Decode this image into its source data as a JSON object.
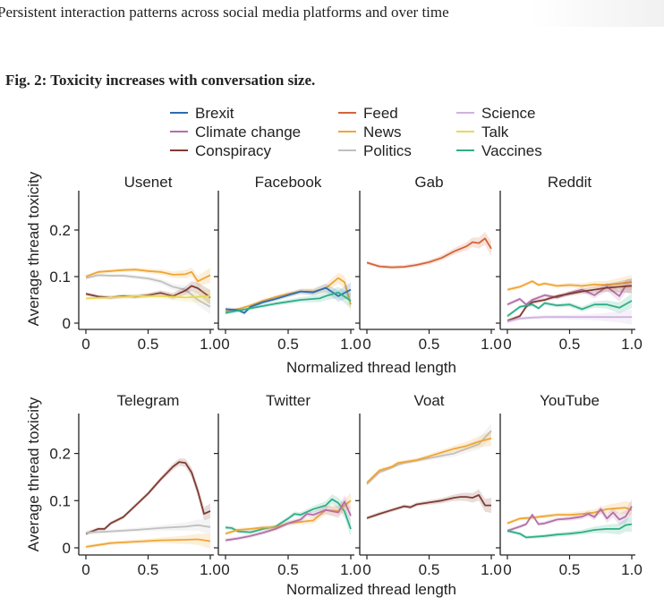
{
  "header": {
    "article_title": "Persistent interaction patterns across social media platforms and over time"
  },
  "figure": {
    "title": "Fig. 2: Toxicity increases with conversation size."
  },
  "chart_data": {
    "type": "line",
    "title": "Fig. 2: Toxicity increases with conversation size.",
    "xlabel": "Normalized thread length",
    "ylabel": "Average thread toxicity",
    "xlim": [
      0,
      1.0
    ],
    "ylim": [
      -0.01,
      0.28
    ],
    "xticks": [
      0,
      0.5,
      1.0
    ],
    "xtick_labels": [
      "0",
      "0.5",
      "1.0"
    ],
    "yticks": [
      0,
      0.1,
      0.2
    ],
    "ytick_labels": [
      "0",
      "0.1",
      "0.2"
    ],
    "grid": false,
    "legend_position": "top",
    "legend": [
      {
        "name": "Brexit",
        "color": "#2b6cb0"
      },
      {
        "name": "Climate change",
        "color": "#b36fa8"
      },
      {
        "name": "Conspiracy",
        "color": "#7e3b32"
      },
      {
        "name": "Feed",
        "color": "#d4633a"
      },
      {
        "name": "News",
        "color": "#f0a534"
      },
      {
        "name": "Politics",
        "color": "#c0c0c0"
      },
      {
        "name": "Science",
        "color": "#cfb2df"
      },
      {
        "name": "Talk",
        "color": "#e8d85a"
      },
      {
        "name": "Vaccines",
        "color": "#2fae86"
      }
    ],
    "panels": [
      {
        "name": "Usenet",
        "series": [
          {
            "name": "News",
            "x": [
              0,
              0.1,
              0.2,
              0.3,
              0.4,
              0.5,
              0.6,
              0.7,
              0.8,
              0.85,
              0.9,
              1.0
            ],
            "values": [
              0.1,
              0.11,
              0.112,
              0.114,
              0.115,
              0.112,
              0.11,
              0.104,
              0.105,
              0.11,
              0.09,
              0.103
            ]
          },
          {
            "name": "Politics",
            "x": [
              0,
              0.1,
              0.2,
              0.3,
              0.4,
              0.5,
              0.6,
              0.7,
              0.8,
              0.9,
              1.0
            ],
            "values": [
              0.097,
              0.103,
              0.102,
              0.102,
              0.099,
              0.096,
              0.09,
              0.078,
              0.072,
              0.05,
              0.035
            ]
          },
          {
            "name": "Conspiracy",
            "x": [
              0,
              0.1,
              0.2,
              0.3,
              0.4,
              0.5,
              0.6,
              0.7,
              0.8,
              0.85,
              0.9,
              1.0
            ],
            "values": [
              0.063,
              0.057,
              0.055,
              0.058,
              0.057,
              0.06,
              0.065,
              0.058,
              0.07,
              0.08,
              0.075,
              0.055
            ]
          },
          {
            "name": "Talk",
            "x": [
              0,
              0.2,
              0.4,
              0.6,
              0.8,
              1.0
            ],
            "values": [
              0.053,
              0.055,
              0.058,
              0.058,
              0.055,
              0.058
            ]
          }
        ]
      },
      {
        "name": "Facebook",
        "series": [
          {
            "name": "News",
            "x": [
              0,
              0.1,
              0.2,
              0.3,
              0.4,
              0.5,
              0.6,
              0.7,
              0.8,
              0.9,
              0.95,
              1.0
            ],
            "values": [
              0.025,
              0.03,
              0.038,
              0.048,
              0.056,
              0.063,
              0.068,
              0.068,
              0.075,
              0.097,
              0.088,
              0.04
            ]
          },
          {
            "name": "Brexit",
            "x": [
              0,
              0.1,
              0.15,
              0.2,
              0.3,
              0.4,
              0.5,
              0.6,
              0.7,
              0.8,
              0.9,
              1.0
            ],
            "values": [
              0.03,
              0.028,
              0.022,
              0.035,
              0.045,
              0.052,
              0.06,
              0.068,
              0.066,
              0.076,
              0.058,
              0.072
            ]
          },
          {
            "name": "Vaccines",
            "x": [
              0,
              0.2,
              0.4,
              0.6,
              0.75,
              0.8,
              0.9,
              1.0
            ],
            "values": [
              0.022,
              0.032,
              0.042,
              0.05,
              0.053,
              0.058,
              0.066,
              0.048
            ]
          }
        ]
      },
      {
        "name": "Gab",
        "series": [
          {
            "name": "Feed",
            "x": [
              0,
              0.1,
              0.2,
              0.3,
              0.4,
              0.5,
              0.6,
              0.7,
              0.8,
              0.85,
              0.9,
              0.95,
              1.0
            ],
            "values": [
              0.13,
              0.122,
              0.12,
              0.121,
              0.125,
              0.131,
              0.14,
              0.154,
              0.165,
              0.174,
              0.172,
              0.182,
              0.16
            ]
          }
        ]
      },
      {
        "name": "Reddit",
        "series": [
          {
            "name": "News",
            "x": [
              0,
              0.1,
              0.2,
              0.25,
              0.3,
              0.4,
              0.5,
              0.6,
              0.7,
              0.8,
              0.9,
              1.0
            ],
            "values": [
              0.072,
              0.078,
              0.09,
              0.082,
              0.085,
              0.08,
              0.082,
              0.08,
              0.083,
              0.082,
              0.085,
              0.088
            ]
          },
          {
            "name": "Climate change",
            "x": [
              0,
              0.1,
              0.15,
              0.2,
              0.3,
              0.4,
              0.5,
              0.6,
              0.7,
              0.8,
              0.9,
              0.95,
              1.0
            ],
            "values": [
              0.04,
              0.052,
              0.04,
              0.05,
              0.06,
              0.055,
              0.065,
              0.072,
              0.06,
              0.078,
              0.058,
              0.08,
              0.08
            ]
          },
          {
            "name": "Conspiracy",
            "x": [
              0,
              0.1,
              0.15,
              0.2,
              0.3,
              0.4,
              0.5,
              0.6,
              0.7,
              0.8,
              0.9,
              1.0
            ],
            "values": [
              0.005,
              0.015,
              0.035,
              0.045,
              0.05,
              0.058,
              0.063,
              0.068,
              0.072,
              0.076,
              0.078,
              0.08
            ]
          },
          {
            "name": "Vaccines",
            "x": [
              0,
              0.1,
              0.2,
              0.25,
              0.3,
              0.4,
              0.5,
              0.6,
              0.7,
              0.8,
              0.9,
              1.0
            ],
            "values": [
              0.015,
              0.035,
              0.04,
              0.032,
              0.043,
              0.038,
              0.04,
              0.03,
              0.04,
              0.04,
              0.033,
              0.048
            ]
          },
          {
            "name": "Science",
            "x": [
              0,
              0.1,
              0.2,
              0.3,
              0.5,
              0.7,
              0.9,
              1.0
            ],
            "values": [
              0.003,
              0.01,
              0.012,
              0.013,
              0.013,
              0.013,
              0.013,
              0.013
            ]
          }
        ]
      },
      {
        "name": "Telegram",
        "series": [
          {
            "name": "Conspiracy",
            "x": [
              0,
              0.1,
              0.15,
              0.2,
              0.3,
              0.4,
              0.5,
              0.6,
              0.7,
              0.75,
              0.8,
              0.85,
              0.9,
              0.95,
              1.0
            ],
            "values": [
              0.03,
              0.04,
              0.04,
              0.052,
              0.065,
              0.09,
              0.115,
              0.145,
              0.172,
              0.182,
              0.18,
              0.16,
              0.12,
              0.072,
              0.078
            ]
          },
          {
            "name": "Politics",
            "x": [
              0,
              0.2,
              0.4,
              0.6,
              0.8,
              0.9,
              1.0
            ],
            "values": [
              0.032,
              0.035,
              0.038,
              0.042,
              0.045,
              0.048,
              0.044
            ]
          },
          {
            "name": "News",
            "x": [
              0,
              0.1,
              0.2,
              0.4,
              0.6,
              0.8,
              0.9,
              1.0
            ],
            "values": [
              0.002,
              0.006,
              0.01,
              0.013,
              0.016,
              0.017,
              0.018,
              0.014
            ]
          }
        ]
      },
      {
        "name": "Twitter",
        "series": [
          {
            "name": "Vaccines",
            "x": [
              0,
              0.05,
              0.1,
              0.2,
              0.3,
              0.4,
              0.5,
              0.55,
              0.6,
              0.7,
              0.8,
              0.85,
              0.9,
              0.95,
              1.0
            ],
            "values": [
              0.043,
              0.042,
              0.035,
              0.033,
              0.04,
              0.045,
              0.062,
              0.072,
              0.07,
              0.082,
              0.09,
              0.103,
              0.095,
              0.077,
              0.04
            ]
          },
          {
            "name": "News",
            "x": [
              0,
              0.1,
              0.2,
              0.3,
              0.4,
              0.5,
              0.6,
              0.7,
              0.8,
              0.9,
              0.95,
              1.0
            ],
            "values": [
              0.03,
              0.038,
              0.04,
              0.043,
              0.043,
              0.052,
              0.055,
              0.058,
              0.08,
              0.078,
              0.09,
              0.1
            ]
          },
          {
            "name": "Climate change",
            "x": [
              0,
              0.1,
              0.2,
              0.3,
              0.4,
              0.5,
              0.6,
              0.65,
              0.7,
              0.8,
              0.9,
              0.95,
              1.0
            ],
            "values": [
              0.016,
              0.02,
              0.025,
              0.032,
              0.04,
              0.052,
              0.06,
              0.072,
              0.07,
              0.08,
              0.075,
              0.098,
              0.068
            ]
          }
        ]
      },
      {
        "name": "Voat",
        "series": [
          {
            "name": "Politics",
            "x": [
              0,
              0.1,
              0.2,
              0.25,
              0.3,
              0.4,
              0.5,
              0.6,
              0.7,
              0.8,
              0.9,
              1.0
            ],
            "values": [
              0.135,
              0.16,
              0.17,
              0.176,
              0.18,
              0.185,
              0.19,
              0.195,
              0.2,
              0.21,
              0.22,
              0.248
            ]
          },
          {
            "name": "News",
            "x": [
              0,
              0.1,
              0.2,
              0.25,
              0.3,
              0.4,
              0.5,
              0.6,
              0.7,
              0.8,
              0.9,
              1.0
            ],
            "values": [
              0.138,
              0.164,
              0.172,
              0.18,
              0.182,
              0.186,
              0.194,
              0.202,
              0.21,
              0.216,
              0.225,
              0.232
            ]
          },
          {
            "name": "Conspiracy",
            "x": [
              0,
              0.1,
              0.2,
              0.3,
              0.35,
              0.4,
              0.5,
              0.6,
              0.7,
              0.75,
              0.8,
              0.85,
              0.9,
              0.95,
              1.0
            ],
            "values": [
              0.063,
              0.072,
              0.08,
              0.088,
              0.086,
              0.092,
              0.096,
              0.1,
              0.106,
              0.108,
              0.108,
              0.106,
              0.112,
              0.09,
              0.09
            ]
          }
        ]
      },
      {
        "name": "YouTube",
        "series": [
          {
            "name": "News",
            "x": [
              0,
              0.1,
              0.2,
              0.3,
              0.4,
              0.5,
              0.6,
              0.7,
              0.8,
              0.9,
              0.95,
              1.0
            ],
            "values": [
              0.052,
              0.062,
              0.064,
              0.067,
              0.07,
              0.07,
              0.072,
              0.075,
              0.082,
              0.084,
              0.085,
              0.08
            ]
          },
          {
            "name": "Climate change",
            "x": [
              0,
              0.1,
              0.15,
              0.2,
              0.25,
              0.3,
              0.4,
              0.5,
              0.6,
              0.65,
              0.7,
              0.75,
              0.8,
              0.85,
              0.9,
              0.95,
              1.0
            ],
            "values": [
              0.036,
              0.045,
              0.05,
              0.07,
              0.05,
              0.052,
              0.06,
              0.062,
              0.066,
              0.072,
              0.065,
              0.082,
              0.062,
              0.075,
              0.06,
              0.066,
              0.088
            ]
          },
          {
            "name": "Vaccines",
            "x": [
              0,
              0.1,
              0.15,
              0.2,
              0.3,
              0.4,
              0.5,
              0.6,
              0.7,
              0.8,
              0.9,
              0.95,
              1.0
            ],
            "values": [
              0.036,
              0.03,
              0.022,
              0.023,
              0.025,
              0.028,
              0.03,
              0.033,
              0.038,
              0.04,
              0.04,
              0.048,
              0.05
            ]
          }
        ]
      }
    ]
  }
}
